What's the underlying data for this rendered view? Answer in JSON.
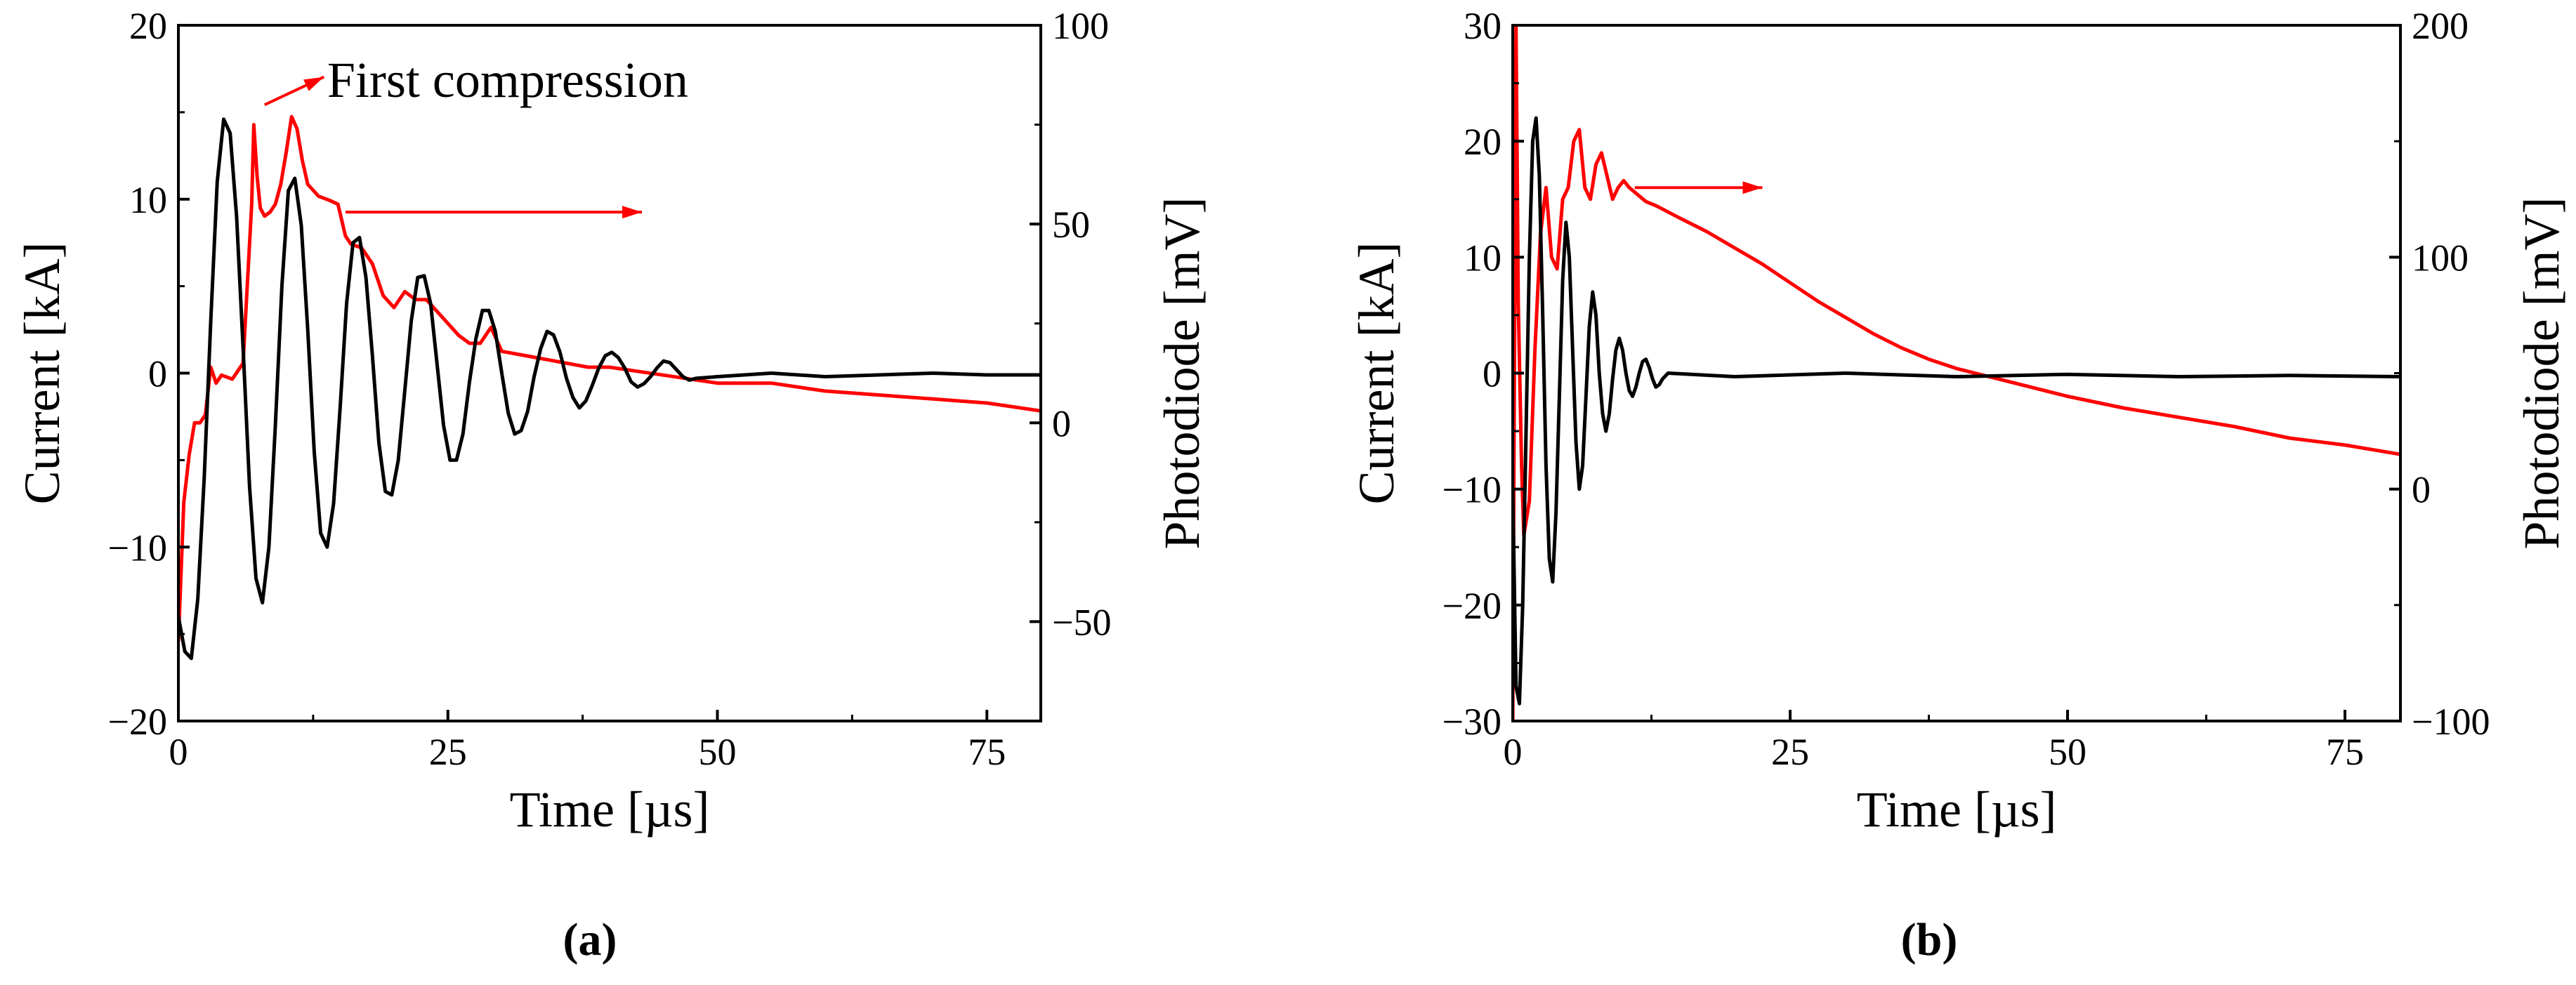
{
  "chart_data": [
    {
      "type": "line",
      "panel_label": "(a)",
      "xlabel": "Time [µs]",
      "ylabel": "Current [kA]",
      "y2label": "Photodiode [mV]",
      "xlim": [
        0,
        80
      ],
      "ylim": [
        -20,
        20
      ],
      "y2lim": [
        -75,
        100
      ],
      "xticks": [
        0,
        25,
        50,
        75
      ],
      "yticks": [
        -20,
        -10,
        0,
        10,
        20
      ],
      "y2ticks": [
        -50,
        0,
        50,
        100
      ],
      "grid": false,
      "annotation": "First compression",
      "series": [
        {
          "name": "Current",
          "axis": "left",
          "color": "#000000",
          "x": [
            0,
            0.6,
            1.2,
            1.8,
            2.4,
            3.0,
            3.6,
            4.2,
            4.8,
            5.4,
            6.0,
            6.6,
            7.2,
            7.8,
            8.4,
            9.0,
            9.6,
            10.2,
            10.8,
            11.4,
            12.0,
            12.6,
            13.2,
            13.8,
            14.4,
            15.0,
            15.6,
            16.2,
            16.8,
            17.4,
            18.0,
            18.6,
            19.2,
            19.8,
            20.4,
            21.0,
            21.6,
            22.2,
            22.8,
            23.4,
            24.0,
            24.6,
            25.2,
            25.8,
            26.4,
            27.0,
            27.6,
            28.2,
            28.8,
            29.4,
            30.0,
            30.6,
            31.2,
            31.8,
            32.4,
            33.0,
            33.6,
            34.2,
            34.8,
            35.4,
            36.0,
            36.6,
            37.2,
            37.8,
            38.4,
            39.0,
            39.6,
            40.2,
            40.8,
            41.4,
            42.0,
            42.6,
            43.2,
            43.8,
            44.4,
            45.0,
            45.6,
            46.2,
            46.8,
            47.4,
            48.0,
            50,
            55,
            60,
            65,
            70,
            75,
            80
          ],
          "values": [
            -14.0,
            -16.0,
            -16.4,
            -13.0,
            -6.0,
            3.0,
            11.0,
            14.6,
            13.8,
            9.0,
            1.5,
            -6.5,
            -11.8,
            -13.2,
            -10.0,
            -3.0,
            5.0,
            10.5,
            11.2,
            8.5,
            2.5,
            -4.5,
            -9.2,
            -10.0,
            -7.5,
            -2.0,
            4.0,
            7.5,
            7.8,
            5.5,
            1.0,
            -4.0,
            -6.8,
            -7.0,
            -5.0,
            -1.0,
            3.0,
            5.5,
            5.6,
            4.0,
            0.5,
            -3.0,
            -5.0,
            -5.0,
            -3.5,
            -0.5,
            2.0,
            3.6,
            3.6,
            2.4,
            0.0,
            -2.3,
            -3.5,
            -3.3,
            -2.2,
            -0.2,
            1.4,
            2.4,
            2.2,
            1.2,
            -0.3,
            -1.4,
            -2.0,
            -1.6,
            -0.7,
            0.3,
            1.0,
            1.2,
            0.9,
            0.3,
            -0.5,
            -0.8,
            -0.6,
            -0.2,
            0.3,
            0.7,
            0.6,
            0.2,
            -0.2,
            -0.4,
            -0.3,
            -0.2,
            0.0,
            -0.2,
            -0.1,
            0.0,
            -0.1,
            -0.1
          ]
        },
        {
          "name": "Photodiode",
          "axis": "right",
          "color": "#ff0000",
          "x": [
            0,
            0.5,
            1.0,
            1.5,
            2.0,
            2.5,
            3.0,
            3.5,
            4.0,
            5.0,
            6.0,
            6.8,
            7.0,
            7.3,
            7.6,
            8.0,
            8.5,
            9.0,
            9.5,
            10.0,
            10.5,
            11.0,
            11.5,
            12.0,
            13.0,
            14.0,
            14.8,
            15.5,
            16.0,
            17.0,
            18.0,
            19.0,
            20.0,
            21.0,
            22.0,
            23.0,
            24.0,
            25.0,
            26.0,
            27.0,
            28.0,
            29.0,
            30.0,
            32.0,
            34.0,
            36.0,
            38.0,
            40.0,
            45.0,
            50.0,
            55.0,
            60.0,
            65.0,
            70.0,
            75.0,
            80.0
          ],
          "values": [
            -55,
            -20,
            -8,
            0,
            0,
            2,
            14,
            10,
            12,
            11,
            15,
            55,
            75,
            62,
            54,
            52,
            53,
            55,
            60,
            68,
            77,
            74,
            66,
            60,
            57,
            56,
            55,
            47,
            45,
            44,
            40,
            32,
            29,
            33,
            31,
            31,
            28,
            25,
            22,
            20,
            20,
            24,
            18,
            17,
            16,
            15,
            14,
            14,
            12,
            10,
            10,
            8,
            7,
            6,
            5,
            3
          ]
        }
      ]
    },
    {
      "type": "line",
      "panel_label": "(b)",
      "xlabel": "Time [µs]",
      "ylabel": "Current [kA]",
      "y2label": "Photodiode [mV]",
      "xlim": [
        0,
        80
      ],
      "ylim": [
        -30,
        30
      ],
      "y2lim": [
        -100,
        200
      ],
      "xticks": [
        0,
        25,
        50,
        75
      ],
      "yticks": [
        -30,
        -20,
        -10,
        0,
        10,
        20,
        30
      ],
      "y2ticks": [
        -100,
        0,
        100,
        200
      ],
      "grid": false,
      "series": [
        {
          "name": "Current",
          "axis": "left",
          "color": "#000000",
          "x": [
            0,
            0.3,
            0.6,
            0.9,
            1.2,
            1.5,
            1.8,
            2.1,
            2.4,
            2.7,
            3.0,
            3.3,
            3.6,
            3.9,
            4.2,
            4.5,
            4.8,
            5.1,
            5.4,
            5.7,
            6.0,
            6.3,
            6.6,
            6.9,
            7.2,
            7.5,
            7.8,
            8.1,
            8.4,
            8.7,
            9.0,
            9.3,
            9.6,
            9.9,
            10.2,
            10.5,
            10.8,
            11.1,
            11.4,
            11.7,
            12.0,
            12.3,
            12.6,
            12.9,
            13.2,
            13.5,
            14.0,
            20,
            30,
            40,
            50,
            60,
            70,
            80
          ],
          "values": [
            -10,
            -27,
            -28.5,
            -20,
            -5,
            10,
            20,
            22,
            17,
            5,
            -8,
            -16,
            -18,
            -12,
            -2,
            8,
            13,
            10,
            2,
            -6,
            -10,
            -8,
            -2,
            4,
            7,
            5,
            0,
            -3.5,
            -5,
            -3.5,
            -0.5,
            2,
            3,
            2,
            0,
            -1.5,
            -2,
            -1.2,
            0,
            1,
            1.2,
            0.5,
            -0.5,
            -1.2,
            -1,
            -0.5,
            0,
            -0.3,
            0,
            -0.3,
            -0.1,
            -0.3,
            -0.2,
            -0.3
          ]
        },
        {
          "name": "Photodiode",
          "axis": "right",
          "color": "#ff0000",
          "x": [
            0,
            0.3,
            0.5,
            0.8,
            1.0,
            1.5,
            2.0,
            2.5,
            3.0,
            3.5,
            4.0,
            4.5,
            5.0,
            5.5,
            6.0,
            6.5,
            7.0,
            7.5,
            8.0,
            8.5,
            9.0,
            9.5,
            10.0,
            10.5,
            11.0,
            12.0,
            13.0,
            15.0,
            17.5,
            20.0,
            22.5,
            25.0,
            27.5,
            30.0,
            32.5,
            35.0,
            37.5,
            40.0,
            45.0,
            50.0,
            55.0,
            60.0,
            65.0,
            70.0,
            75.0,
            80.0
          ],
          "values": [
            -100,
            200,
            80,
            10,
            -20,
            -5,
            60,
            110,
            130,
            100,
            95,
            125,
            130,
            150,
            155,
            130,
            125,
            140,
            145,
            135,
            125,
            130,
            133,
            130,
            128,
            124,
            122,
            117,
            111,
            104,
            97,
            89,
            81,
            74,
            67,
            61,
            56,
            52,
            46,
            40,
            35,
            31,
            27,
            22,
            19,
            15
          ]
        }
      ]
    }
  ]
}
